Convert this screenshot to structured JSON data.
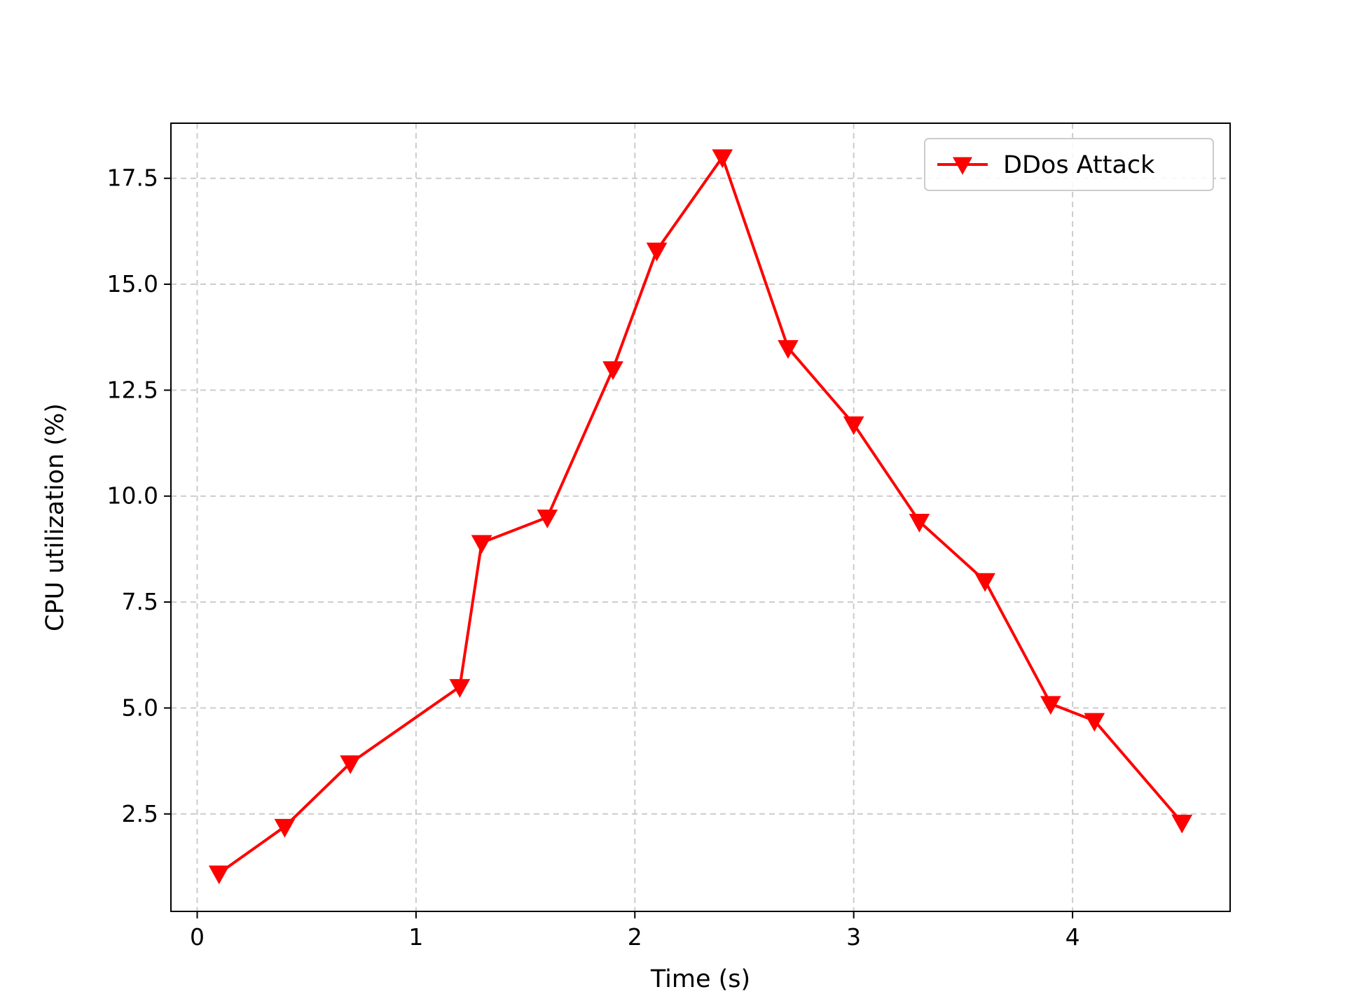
{
  "chart_data": {
    "type": "line",
    "title": "",
    "xlabel": "Time (s)",
    "ylabel": "CPU utilization (%)",
    "xlim": [
      -0.12,
      4.72
    ],
    "ylim": [
      0.2,
      18.8
    ],
    "xticks": [
      0,
      1,
      2,
      3,
      4
    ],
    "xtick_labels": [
      "0",
      "1",
      "2",
      "3",
      "4"
    ],
    "yticks": [
      2.5,
      5.0,
      7.5,
      10.0,
      12.5,
      15.0,
      17.5
    ],
    "ytick_labels": [
      "2.5",
      "5.0",
      "7.5",
      "10.0",
      "12.5",
      "15.0",
      "17.5"
    ],
    "grid": true,
    "legend_position": "top-right",
    "series": [
      {
        "name": "DDos Attack",
        "color": "#ff0000",
        "marker": "triangle-down",
        "x": [
          0.1,
          0.4,
          0.7,
          1.2,
          1.3,
          1.6,
          1.9,
          2.1,
          2.4,
          2.7,
          3.0,
          3.3,
          3.6,
          3.9,
          4.1,
          4.5
        ],
        "y": [
          1.1,
          2.2,
          3.7,
          5.5,
          8.9,
          9.5,
          13.0,
          15.8,
          18.0,
          13.5,
          11.7,
          9.4,
          8.0,
          5.1,
          4.7,
          2.3
        ]
      }
    ]
  }
}
